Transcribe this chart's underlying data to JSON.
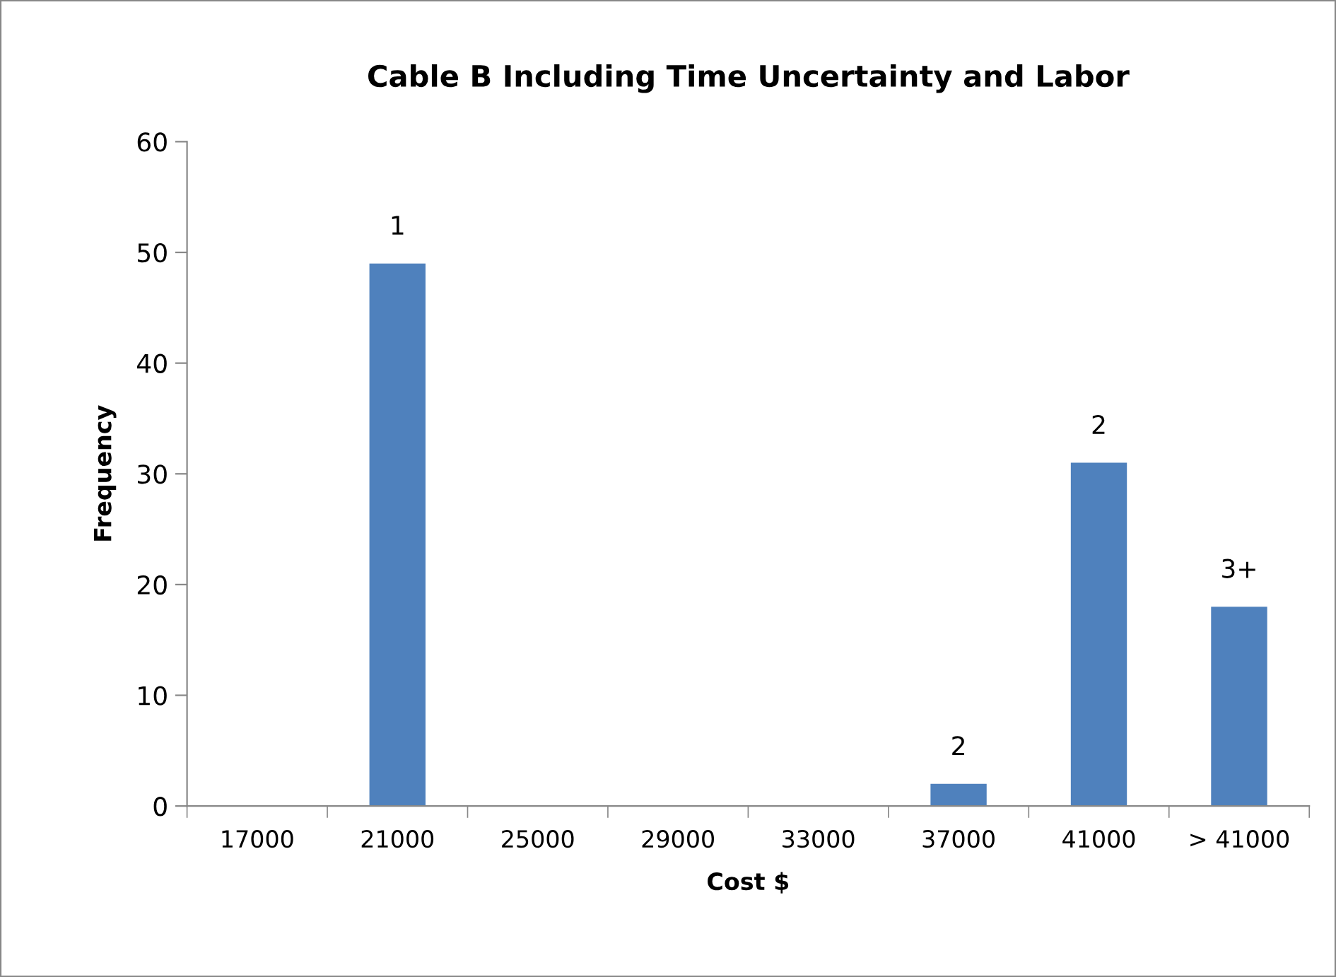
{
  "chart_data": {
    "type": "bar",
    "title": "Cable B Including Time Uncertainty and Labor",
    "xlabel": "Cost $",
    "ylabel": "Frequency",
    "categories": [
      "17000",
      "21000",
      "25000",
      "29000",
      "33000",
      "37000",
      "41000",
      "> 41000"
    ],
    "values": [
      0,
      49,
      0,
      0,
      0,
      2,
      31,
      18
    ],
    "annotations": [
      {
        "text": "1",
        "x": "21000",
        "y": 49
      },
      {
        "text": "2",
        "x": "37000",
        "y": 2
      },
      {
        "text": "2",
        "x": "41000",
        "y": 31
      },
      {
        "text": "3+",
        "x": "> 41000",
        "y": 18
      }
    ],
    "color": "#4f81bd",
    "ylim": [
      0,
      60
    ],
    "yticks": [
      0,
      10,
      20,
      30,
      40,
      50,
      60
    ],
    "grid": false,
    "legend": false
  }
}
